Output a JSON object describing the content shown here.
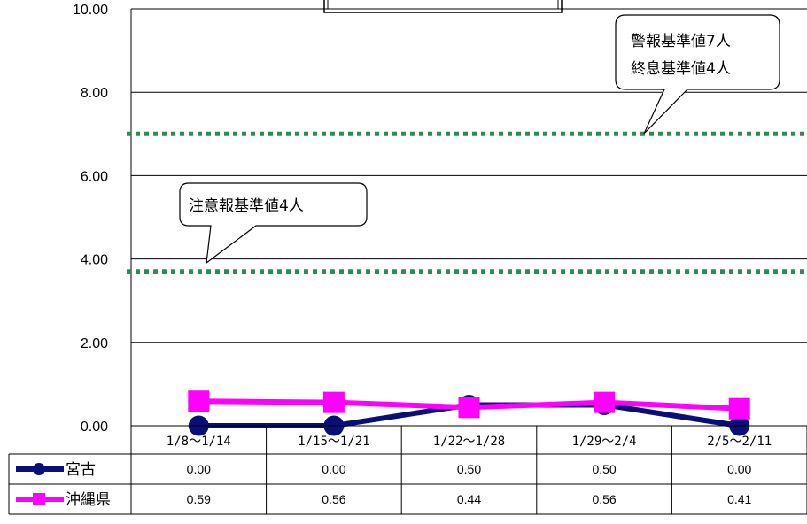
{
  "chart_data": {
    "type": "line",
    "title": "",
    "xlabel": "",
    "ylabel": "",
    "ylim": [
      0,
      10
    ],
    "y_ticks": [
      "0.00",
      "2.00",
      "4.00",
      "6.00",
      "8.00",
      "10.00"
    ],
    "categories": [
      "1/8～1/14",
      "1/15～1/21",
      "1/22～1/28",
      "1/29～2/4",
      "2/5～2/11"
    ],
    "series": [
      {
        "name": "宮古",
        "values": [
          0.0,
          0.0,
          0.5,
          0.5,
          0.0
        ],
        "value_labels": [
          "0.00",
          "0.00",
          "0.50",
          "0.50",
          "0.00"
        ],
        "color": "#0a0f78",
        "marker": "circle"
      },
      {
        "name": "沖縄県",
        "values": [
          0.59,
          0.56,
          0.44,
          0.56,
          0.41
        ],
        "value_labels": [
          "0.59",
          "0.56",
          "0.44",
          "0.56",
          "0.41"
        ],
        "color": "#ff00ff",
        "marker": "square"
      }
    ],
    "reference_lines": [
      {
        "value": 7,
        "color": "#2e8b57",
        "style": "dotted"
      },
      {
        "value": 3.7,
        "color": "#2e8b57",
        "style": "dotted"
      }
    ],
    "annotations": [
      {
        "lines": [
          "警報基準値7人",
          "終息基準値4人"
        ]
      },
      {
        "lines": [
          "注意報基準値4人"
        ]
      }
    ],
    "grid": true,
    "legend": "data-table"
  }
}
